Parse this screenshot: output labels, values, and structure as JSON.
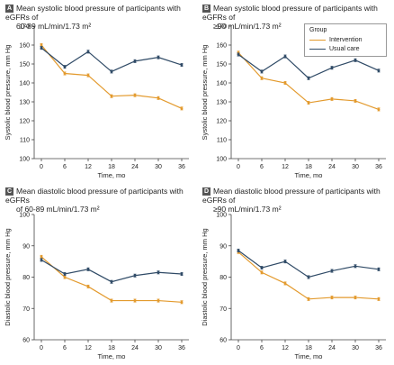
{
  "colors": {
    "intervention": "#e39a2d",
    "usual_care": "#2f4a66"
  },
  "legend": {
    "title": "Group",
    "items": [
      "Intervention",
      "Usual care"
    ]
  },
  "chart_data": [
    {
      "id": "A",
      "type": "line",
      "letter": "A",
      "title_line1": "Mean systolic blood pressure of participants with eGFRs of",
      "title_line2": "60-89 mL/min/1.73 m²",
      "xlabel": "Time, mo",
      "ylabel": "Systolic blood pressure, mm Hg",
      "x": [
        0,
        6,
        12,
        18,
        24,
        30,
        36
      ],
      "xticks": [
        "0",
        "6",
        "12",
        "18",
        "24",
        "30",
        "36"
      ],
      "ylim": [
        100,
        170
      ],
      "yticks": [
        "100",
        "110",
        "120",
        "130",
        "140",
        "150",
        "160",
        "170"
      ],
      "series": [
        {
          "name": "Intervention",
          "values": [
            160,
            145,
            144,
            133,
            133.5,
            132,
            126.5
          ]
        },
        {
          "name": "Usual care",
          "values": [
            158.5,
            148.5,
            156.5,
            146,
            151.5,
            153.5,
            149.5
          ]
        }
      ]
    },
    {
      "id": "B",
      "type": "line",
      "letter": "B",
      "title_line1": "Mean systolic blood pressure of participants with eGFRs of",
      "title_line2": "≥90 mL/min/1.73 m²",
      "xlabel": "Time, mo",
      "ylabel": "Systolic blood pressure, mm Hg",
      "x": [
        0,
        6,
        12,
        18,
        24,
        30,
        36
      ],
      "xticks": [
        "0",
        "6",
        "12",
        "18",
        "24",
        "30",
        "36"
      ],
      "ylim": [
        100,
        170
      ],
      "yticks": [
        "100",
        "110",
        "120",
        "130",
        "140",
        "150",
        "160",
        "170"
      ],
      "series": [
        {
          "name": "Intervention",
          "values": [
            156,
            142.5,
            140,
            129.5,
            131.5,
            130.5,
            126
          ]
        },
        {
          "name": "Usual care",
          "values": [
            155,
            146,
            154,
            142.5,
            148,
            152,
            146.5
          ]
        }
      ]
    },
    {
      "id": "C",
      "type": "line",
      "letter": "C",
      "title_line1": "Mean diastolic blood pressure of participants with eGFRs",
      "title_line2": "of 60-89 mL/min/1.73 m²",
      "xlabel": "Time, mo",
      "ylabel": "Diastolic blood pressure, mm Hg",
      "x": [
        0,
        6,
        12,
        18,
        24,
        30,
        36
      ],
      "xticks": [
        "0",
        "6",
        "12",
        "18",
        "24",
        "30",
        "36"
      ],
      "ylim": [
        60,
        100
      ],
      "yticks": [
        "60",
        "70",
        "80",
        "90",
        "100"
      ],
      "series": [
        {
          "name": "Intervention",
          "values": [
            86.5,
            80,
            77,
            72.5,
            72.5,
            72.5,
            72
          ]
        },
        {
          "name": "Usual care",
          "values": [
            85.5,
            81,
            82.5,
            78.5,
            80.5,
            81.5,
            81
          ]
        }
      ]
    },
    {
      "id": "D",
      "type": "line",
      "letter": "D",
      "title_line1": "Mean diastolic blood pressure of participants with eGFRs of",
      "title_line2": "≥90 mL/min/1.73 m²",
      "xlabel": "Time, mo",
      "ylabel": "Diastolic blood pressure, mm Hg",
      "x": [
        0,
        6,
        12,
        18,
        24,
        30,
        36
      ],
      "xticks": [
        "0",
        "6",
        "12",
        "18",
        "24",
        "30",
        "36"
      ],
      "ylim": [
        60,
        100
      ],
      "yticks": [
        "60",
        "70",
        "80",
        "90",
        "100"
      ],
      "series": [
        {
          "name": "Intervention",
          "values": [
            88,
            81.5,
            78,
            73,
            73.5,
            73.5,
            73
          ]
        },
        {
          "name": "Usual care",
          "values": [
            88.5,
            83,
            85,
            80,
            82,
            83.5,
            82.5
          ]
        }
      ]
    }
  ]
}
